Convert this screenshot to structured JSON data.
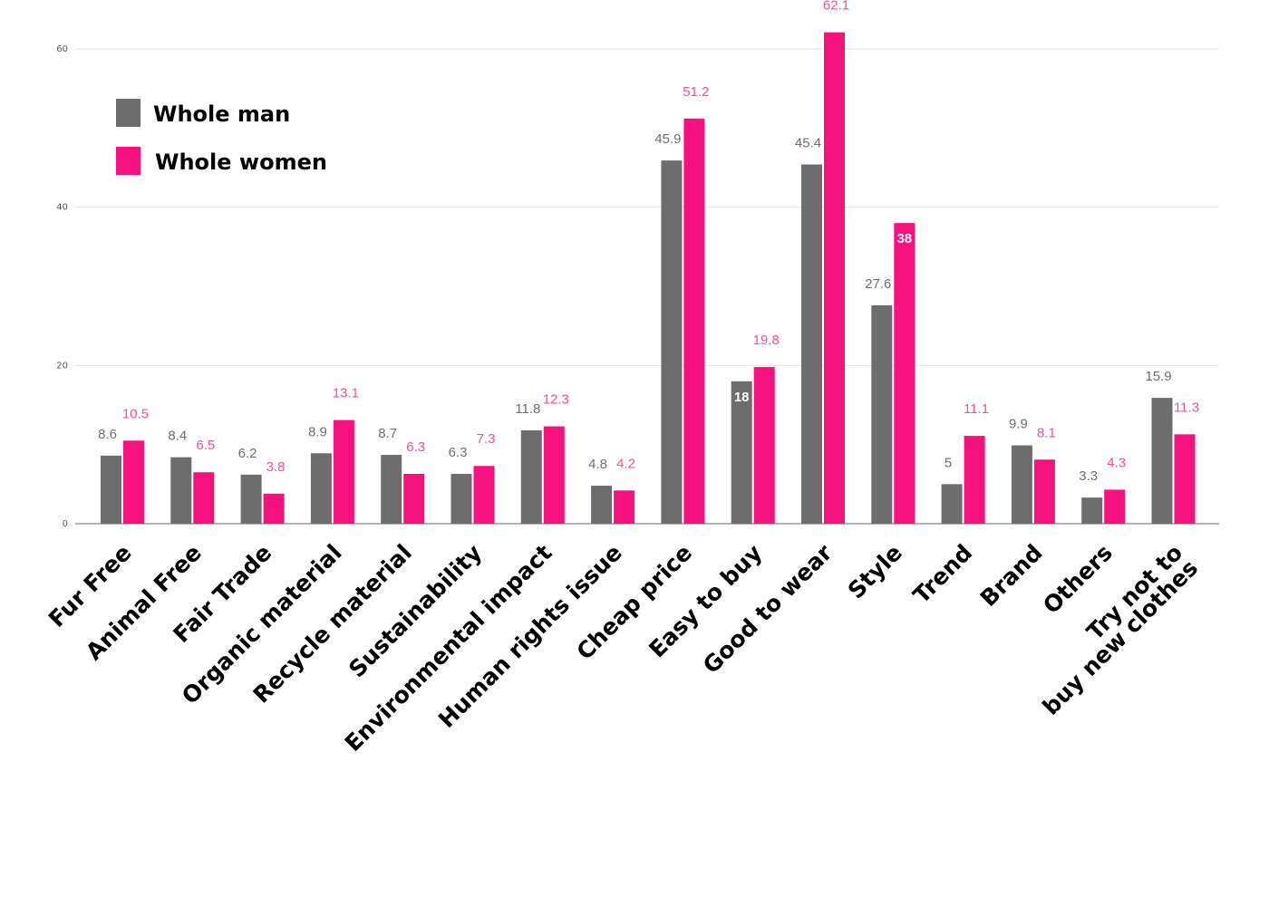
{
  "colors": {
    "man": "#6d6d6d",
    "women": "#f5127e",
    "grid": "#e3e3e3",
    "axis": "#9a9a9a"
  },
  "chart_data": {
    "type": "bar",
    "title": "",
    "xlabel": "",
    "ylabel": "",
    "ylim": [
      0,
      60
    ],
    "yticks": [
      0,
      20,
      40,
      60
    ],
    "grid": true,
    "legend_position": "top-left",
    "categories": [
      "Fur Free",
      "Animal Free",
      "Fair Trade",
      "Organic material",
      "Recycle material",
      "Sustainability",
      "Environmental impact",
      "Human rights issue",
      "Cheap price",
      "Easy to buy",
      "Good  to wear",
      "Style",
      "Trend",
      "Brand",
      "Others",
      "Try not to buy new clothes"
    ],
    "series": [
      {
        "name": "Whole man",
        "values": [
          8.6,
          8.4,
          6.2,
          8.9,
          8.7,
          6.3,
          11.8,
          4.8,
          45.9,
          18,
          45.4,
          27.6,
          5,
          9.9,
          3.3,
          15.9
        ]
      },
      {
        "name": "Whole women",
        "values": [
          10.5,
          6.5,
          3.8,
          13.1,
          6.3,
          7.3,
          12.3,
          4.2,
          51.2,
          19.8,
          62.1,
          38,
          11.1,
          8.1,
          4.3,
          11.3
        ]
      }
    ]
  }
}
